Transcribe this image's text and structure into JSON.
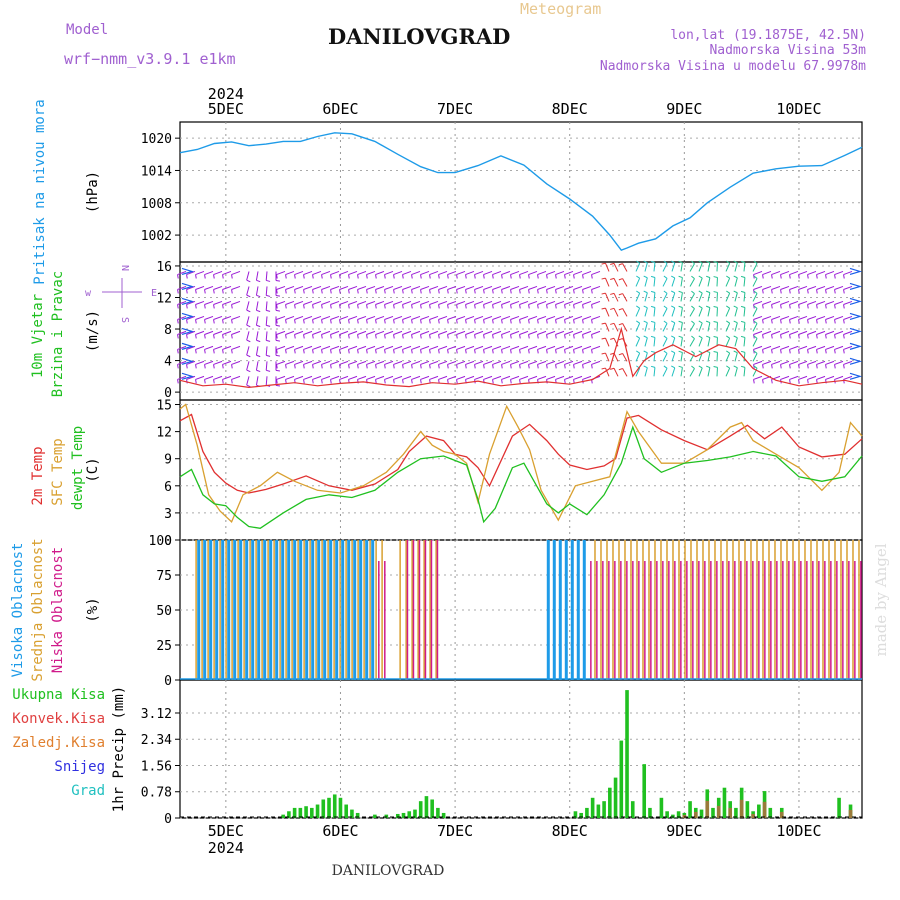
{
  "header": {
    "model_label": "Model",
    "model_name": "wrf−nmm_v3.9.1  e1km",
    "station": "DANILOVGRAD",
    "meteogram": "Meteogram",
    "lonlat": "lon,lat (19.1875E, 42.5N)",
    "elevation": "Nadmorska Visina 53m",
    "model_elevation": "Nadmorska Visina u modelu 67.9978m",
    "footer": "DANILOVGRAD",
    "credit": "made by Angel"
  },
  "colors": {
    "pressure": "#1e9be8",
    "wind_barb": "#9a1ad6",
    "wind_arrow": "#1a5ee8",
    "wind_speed": "#e03030",
    "temp2m": "#e03030",
    "sfc": "#d9a030",
    "dewpt": "#20c020",
    "high": "#1e9be8",
    "mid": "#d9a030",
    "low": "#d01a8a",
    "precip": "#20c020",
    "conv": "#e04040",
    "frozen": "#e08030",
    "snow": "#3030e0",
    "grad": "#20c0c0"
  },
  "chart_data": [
    {
      "panel": "pressure",
      "type": "line",
      "ylabel_left": "Pritisak na nivou mora",
      "ylabel": "(hPa)",
      "yticks": [
        "1020",
        "1014",
        "1008",
        "1002"
      ],
      "ylim": [
        997,
        1023
      ],
      "xlim": [
        4.6,
        10.55
      ],
      "top_dates": [
        "5DEC",
        "6DEC",
        "7DEC",
        "8DEC",
        "9DEC",
        "10DEC"
      ],
      "top_year": "2024",
      "series": [
        {
          "x": [
            4.6,
            4.75,
            4.9,
            5.05,
            5.2,
            5.35,
            5.5,
            5.65,
            5.8,
            5.95,
            6.1,
            6.3,
            6.5,
            6.7,
            6.85,
            7.0,
            7.2,
            7.4,
            7.6,
            7.8,
            8.0,
            8.2,
            8.35,
            8.45,
            8.5,
            8.6,
            8.75,
            8.9,
            9.05,
            9.2,
            9.4,
            9.6,
            9.8,
            10.0,
            10.2,
            10.4,
            10.55
          ],
          "y": [
            1017.3,
            1017.9,
            1019.0,
            1019.3,
            1018.6,
            1018.9,
            1019.4,
            1019.4,
            1020.3,
            1021.0,
            1020.8,
            1019.4,
            1017.0,
            1014.7,
            1013.6,
            1013.6,
            1014.9,
            1016.7,
            1015.0,
            1011.5,
            1008.7,
            1005.5,
            1002.0,
            999.2,
            999.6,
            1000.5,
            1001.3,
            1003.7,
            1005.2,
            1008.0,
            1010.9,
            1013.5,
            1014.3,
            1014.8,
            1014.9,
            1016.8,
            1018.3
          ]
        }
      ]
    },
    {
      "panel": "wind",
      "type": "line",
      "ylabel_left": [
        "10m Vjetar",
        "Brzina i Pravac"
      ],
      "ylabel": "(m/s)",
      "compass": [
        "N",
        "w",
        "E",
        "S"
      ],
      "yticks": [
        "16",
        "12",
        "8",
        "4",
        "0"
      ],
      "ylim": [
        -1,
        16.5
      ],
      "barb_levels": [
        15.3,
        13.4,
        11.5,
        9.6,
        7.7,
        5.8,
        3.9,
        2.0
      ],
      "series": [
        {
          "name": "speed",
          "x": [
            4.6,
            4.8,
            5.0,
            5.2,
            5.4,
            5.6,
            5.8,
            6.0,
            6.2,
            6.4,
            6.6,
            6.8,
            7.0,
            7.2,
            7.4,
            7.6,
            7.8,
            8.0,
            8.2,
            8.35,
            8.45,
            8.55,
            8.65,
            8.75,
            8.9,
            9.1,
            9.3,
            9.45,
            9.6,
            9.8,
            10.0,
            10.2,
            10.4,
            10.55
          ],
          "y": [
            1.5,
            0.8,
            1.0,
            0.6,
            0.9,
            1.2,
            0.8,
            1.1,
            1.3,
            0.9,
            0.7,
            1.2,
            1.0,
            1.4,
            0.8,
            1.1,
            1.3,
            1.0,
            1.6,
            3.0,
            8.0,
            2.0,
            4.0,
            5.0,
            6.0,
            4.5,
            6.0,
            5.5,
            3.0,
            1.5,
            0.8,
            1.2,
            1.5,
            1.0
          ]
        }
      ]
    },
    {
      "panel": "temperature",
      "type": "line",
      "ylabel_left": [
        "2m Temp",
        "SFC Temp",
        "dewpt Temp"
      ],
      "ylabel": "(C)",
      "yticks": [
        "15",
        "12",
        "9",
        "6",
        "3",
        "0"
      ],
      "ylim": [
        0,
        15.5
      ],
      "series": [
        {
          "name": "2m Temp",
          "x": [
            4.6,
            4.7,
            4.8,
            4.9,
            5.0,
            5.1,
            5.2,
            5.35,
            5.5,
            5.7,
            5.9,
            6.1,
            6.3,
            6.5,
            6.6,
            6.75,
            6.9,
            7.0,
            7.1,
            7.2,
            7.3,
            7.5,
            7.65,
            7.8,
            7.9,
            8.0,
            8.15,
            8.3,
            8.4,
            8.5,
            8.6,
            8.8,
            9.0,
            9.2,
            9.4,
            9.55,
            9.7,
            9.85,
            10.0,
            10.2,
            10.4,
            10.55
          ],
          "y": [
            13.2,
            13.9,
            9.8,
            7.5,
            6.3,
            5.5,
            5.2,
            5.6,
            6.2,
            7.1,
            6.0,
            5.5,
            6.2,
            7.8,
            9.8,
            11.5,
            11.0,
            9.5,
            9.2,
            8.0,
            6.0,
            11.5,
            12.8,
            11.0,
            9.5,
            8.3,
            7.8,
            8.2,
            9.0,
            13.5,
            13.8,
            12.2,
            11.0,
            10.0,
            11.5,
            12.7,
            11.2,
            12.5,
            10.3,
            9.2,
            9.5,
            11.2
          ]
        },
        {
          "name": "SFC Temp",
          "x": [
            4.6,
            4.65,
            4.75,
            4.85,
            4.95,
            5.05,
            5.15,
            5.3,
            5.45,
            5.6,
            5.8,
            6.0,
            6.2,
            6.4,
            6.55,
            6.7,
            6.8,
            6.9,
            7.0,
            7.1,
            7.2,
            7.3,
            7.45,
            7.55,
            7.65,
            7.75,
            7.9,
            8.05,
            8.2,
            8.35,
            8.5,
            8.6,
            8.8,
            9.0,
            9.2,
            9.4,
            9.5,
            9.6,
            9.8,
            10.0,
            10.2,
            10.35,
            10.45,
            10.55
          ],
          "y": [
            14.5,
            15.0,
            10.5,
            5.0,
            3.2,
            2.0,
            5.0,
            6.0,
            7.5,
            6.5,
            5.5,
            5.2,
            6.0,
            7.5,
            9.5,
            12.0,
            10.5,
            9.8,
            9.5,
            8.5,
            4.2,
            9.5,
            14.8,
            12.5,
            10.0,
            5.5,
            2.2,
            6.0,
            6.5,
            7.0,
            14.2,
            12.0,
            8.5,
            8.5,
            10.0,
            12.5,
            13.0,
            11.0,
            9.5,
            8.0,
            5.5,
            7.5,
            13.0,
            11.5
          ]
        },
        {
          "name": "dewpt Temp",
          "x": [
            4.6,
            4.7,
            4.8,
            4.9,
            5.0,
            5.1,
            5.2,
            5.3,
            5.5,
            5.7,
            5.9,
            6.1,
            6.3,
            6.5,
            6.7,
            6.9,
            7.0,
            7.1,
            7.2,
            7.25,
            7.35,
            7.5,
            7.6,
            7.8,
            7.9,
            8.0,
            8.15,
            8.3,
            8.45,
            8.55,
            8.65,
            8.8,
            9.0,
            9.2,
            9.4,
            9.6,
            9.8,
            10.0,
            10.2,
            10.4,
            10.55
          ],
          "y": [
            7.0,
            7.8,
            5.0,
            4.0,
            3.8,
            2.5,
            1.5,
            1.3,
            3.0,
            4.5,
            5.0,
            4.7,
            5.5,
            7.5,
            9.0,
            9.3,
            8.8,
            8.3,
            4.5,
            2.0,
            3.5,
            8.0,
            8.5,
            4.0,
            3.0,
            4.0,
            2.8,
            5.0,
            8.5,
            12.5,
            9.0,
            7.5,
            8.5,
            8.8,
            9.2,
            9.8,
            9.3,
            7.0,
            6.5,
            7.0,
            9.3
          ]
        }
      ]
    },
    {
      "panel": "cloud",
      "type": "bar",
      "ylabel_left": [
        "Visoka Oblacnost",
        "Srednja Oblacnost",
        "Niska Oblacnost"
      ],
      "ylabel": "(%)",
      "yticks": [
        "100",
        "75",
        "50",
        "25",
        "0"
      ],
      "ylim": [
        0,
        100
      ],
      "series": [
        {
          "name": "Visoka Oblacnost",
          "ranges": [
            [
              4.75,
              6.3,
              100
            ],
            [
              7.8,
              8.15,
              100
            ]
          ]
        },
        {
          "name": "Srednja Oblacnost",
          "ranges": [
            [
              4.72,
              6.35,
              100
            ],
            [
              6.5,
              6.85,
              100
            ],
            [
              8.2,
              10.55,
              100
            ]
          ]
        },
        {
          "name": "Niska Oblacnost",
          "ranges": [
            [
              6.3,
              6.4,
              85
            ],
            [
              6.55,
              6.85,
              100
            ],
            [
              8.15,
              10.55,
              85
            ]
          ]
        }
      ]
    },
    {
      "panel": "precip",
      "type": "bar",
      "legend": [
        "Ukupna Kisa",
        "Konvek.Kisa",
        "Zaledj.Kisa",
        "Snijeg",
        "Grad"
      ],
      "ylabel": "1hr Precip (mm)",
      "yticks": [
        "3.12",
        "2.34",
        "1.56",
        "0.78",
        "0"
      ],
      "ylim": [
        0,
        4.1
      ],
      "bottom_dates": [
        "5DEC",
        "6DEC",
        "7DEC",
        "8DEC",
        "9DEC",
        "10DEC"
      ],
      "bottom_year": "2024",
      "series": [
        {
          "name": "Ukupna Kisa",
          "x": [
            5.5,
            5.55,
            5.6,
            5.65,
            5.7,
            5.75,
            5.8,
            5.85,
            5.9,
            5.95,
            6.0,
            6.05,
            6.1,
            6.15,
            6.3,
            6.4,
            6.5,
            6.55,
            6.6,
            6.65,
            6.7,
            6.75,
            6.8,
            6.85,
            6.9,
            8.05,
            8.1,
            8.15,
            8.2,
            8.25,
            8.3,
            8.35,
            8.4,
            8.45,
            8.5,
            8.55,
            8.65,
            8.7,
            8.8,
            8.85,
            8.9,
            8.95,
            9.0,
            9.05,
            9.1,
            9.15,
            9.2,
            9.25,
            9.3,
            9.35,
            9.4,
            9.45,
            9.5,
            9.55,
            9.6,
            9.65,
            9.7,
            9.75,
            9.85,
            10.35,
            10.45
          ],
          "y": [
            0.1,
            0.2,
            0.3,
            0.3,
            0.35,
            0.3,
            0.4,
            0.55,
            0.6,
            0.7,
            0.6,
            0.4,
            0.25,
            0.15,
            0.1,
            0.1,
            0.12,
            0.15,
            0.2,
            0.25,
            0.5,
            0.65,
            0.55,
            0.3,
            0.15,
            0.2,
            0.15,
            0.3,
            0.6,
            0.4,
            0.5,
            0.9,
            1.2,
            2.3,
            3.8,
            0.5,
            1.6,
            0.3,
            0.6,
            0.2,
            0.1,
            0.2,
            0.15,
            0.5,
            0.3,
            0.25,
            0.85,
            0.3,
            0.6,
            0.9,
            0.5,
            0.3,
            0.9,
            0.5,
            0.2,
            0.4,
            0.8,
            0.3,
            0.3,
            0.6,
            0.4
          ]
        }
      ]
    }
  ]
}
